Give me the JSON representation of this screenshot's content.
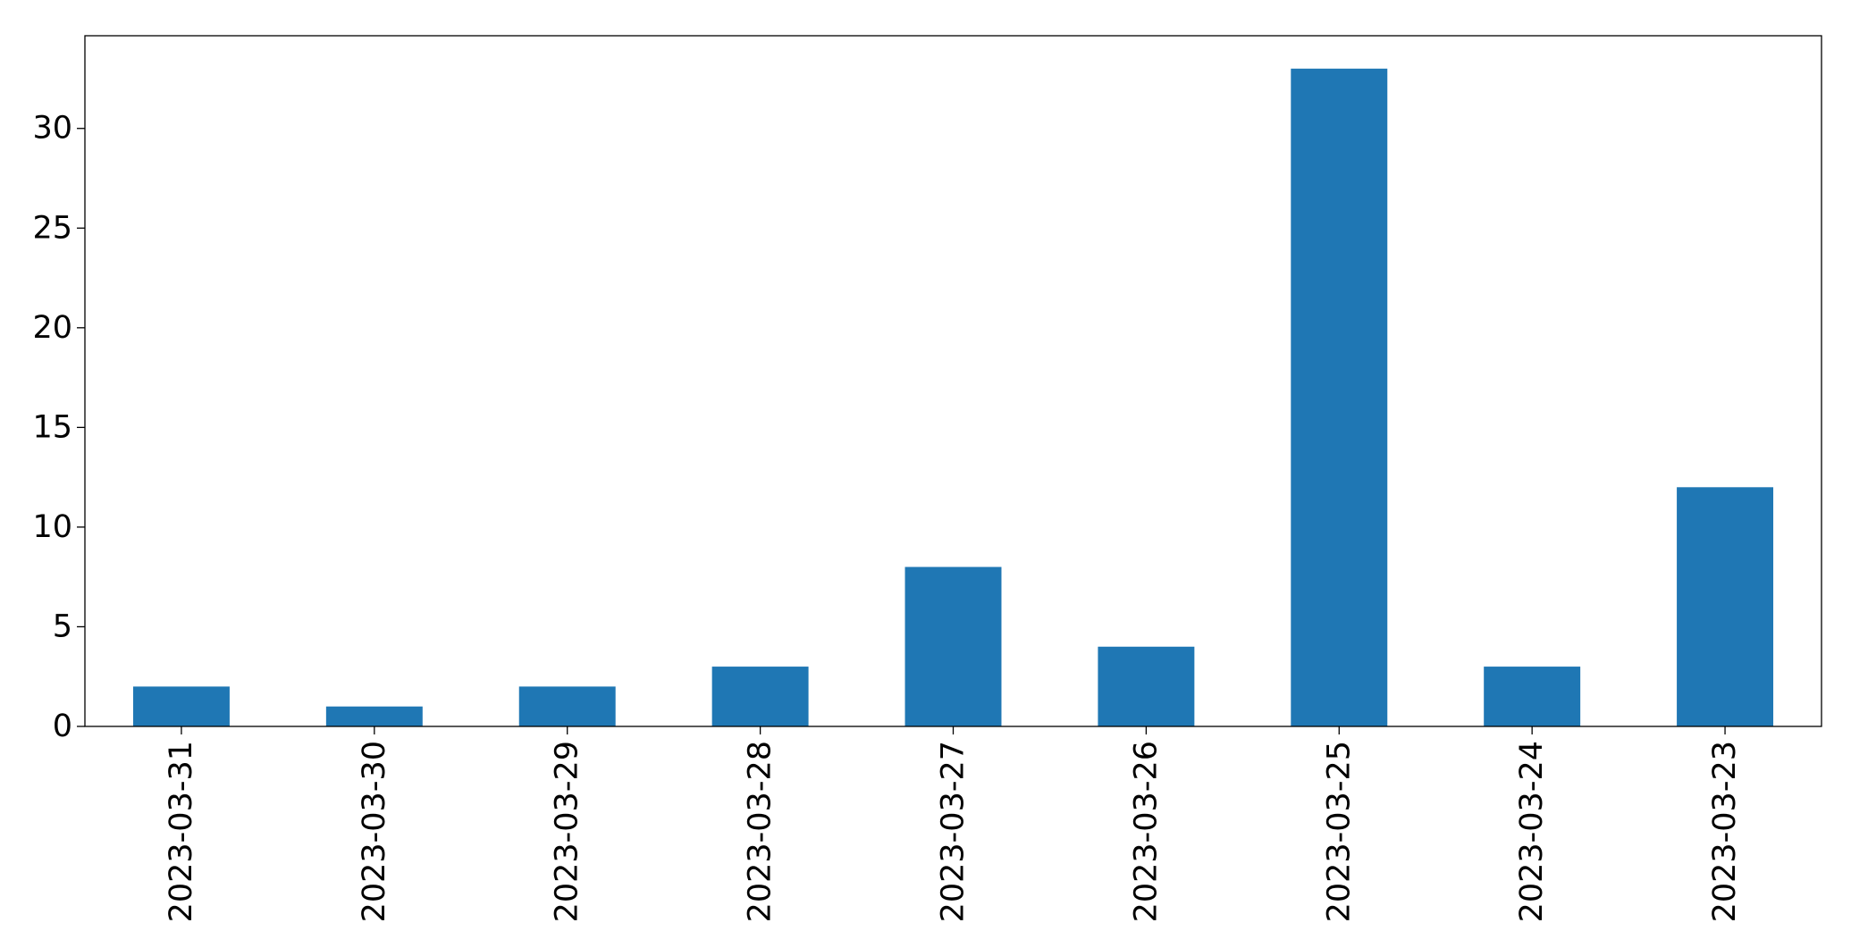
{
  "chart_data": {
    "type": "bar",
    "title": "",
    "xlabel": "",
    "ylabel": "",
    "categories": [
      "2023-03-31",
      "2023-03-30",
      "2023-03-29",
      "2023-03-28",
      "2023-03-27",
      "2023-03-26",
      "2023-03-25",
      "2023-03-24",
      "2023-03-23"
    ],
    "values": [
      2,
      1,
      2,
      3,
      8,
      4,
      33,
      3,
      12
    ],
    "ylim": [
      0,
      34.65
    ],
    "yticks": [
      "0",
      "5",
      "10",
      "15",
      "20",
      "25",
      "30"
    ],
    "grid": false,
    "legend": "none",
    "bar_color": "#1f77b4"
  }
}
